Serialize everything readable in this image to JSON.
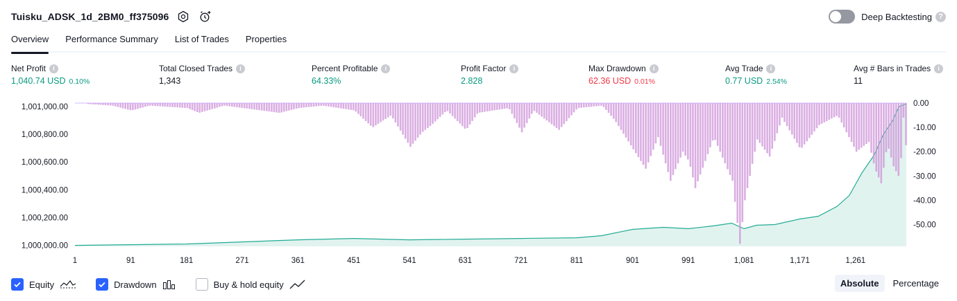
{
  "header": {
    "strategy_name": "Tuisku_ADSK_1d_2BM0_ff375096",
    "deep_backtesting_label": "Deep Backtesting",
    "deep_backtesting_enabled": false,
    "help_glyph": "?"
  },
  "tabs": [
    {
      "label": "Overview",
      "active": true
    },
    {
      "label": "Performance Summary",
      "active": false
    },
    {
      "label": "List of Trades",
      "active": false
    },
    {
      "label": "Properties",
      "active": false
    }
  ],
  "stats": {
    "info_glyph": "i",
    "net_profit": {
      "label": "Net Profit",
      "value": "1,040.74 USD",
      "pct": "0.10%"
    },
    "total_closed_trades": {
      "label": "Total Closed Trades",
      "value": "1,343"
    },
    "percent_profitable": {
      "label": "Percent Profitable",
      "value": "64.33%"
    },
    "profit_factor": {
      "label": "Profit Factor",
      "value": "2.828"
    },
    "max_drawdown": {
      "label": "Max Drawdown",
      "value": "62.36 USD",
      "pct": "0.01%"
    },
    "avg_trade": {
      "label": "Avg Trade",
      "value": "0.77 USD",
      "pct": "2.54%"
    },
    "avg_bars": {
      "label": "Avg # Bars in Trades",
      "value": "11"
    }
  },
  "colors": {
    "profit": "#089981",
    "loss": "#f23645",
    "equity_line": "#22ab94",
    "equity_fill": "#e1f3ef",
    "drawdown_fill": "#ce93d8",
    "drawdown_stroke": "#b388ff",
    "accent": "#2962ff"
  },
  "chart_data": {
    "type": "area",
    "x_ticks": [
      "1",
      "91",
      "181",
      "271",
      "361",
      "451",
      "541",
      "631",
      "721",
      "811",
      "901",
      "991",
      "1,081",
      "1,171",
      "1,261"
    ],
    "x_tick_values": [
      1,
      91,
      181,
      271,
      361,
      451,
      541,
      631,
      721,
      811,
      901,
      991,
      1081,
      1171,
      1261
    ],
    "xlim": [
      1,
      1343
    ],
    "left_axis": {
      "ticks": [
        "1,001,000.00",
        "1,000,800.00",
        "1,000,600.00",
        "1,000,400.00",
        "1,000,200.00",
        "1,000,000.00"
      ],
      "tick_values": [
        1001000,
        1000800,
        1000600,
        1000400,
        1000200,
        1000000
      ],
      "ylim": [
        999993,
        1001030
      ]
    },
    "right_axis": {
      "ticks": [
        "0.00",
        "-10.00",
        "-20.00",
        "-30.00",
        "-40.00",
        "-50.00"
      ],
      "tick_values": [
        0,
        -10,
        -20,
        -30,
        -40,
        -50
      ],
      "ylim": [
        -59,
        0.3
      ]
    },
    "series": [
      {
        "name": "Equity",
        "axis": "left",
        "points": [
          [
            1,
            1000000
          ],
          [
            91,
            1000005
          ],
          [
            181,
            1000010
          ],
          [
            271,
            1000025
          ],
          [
            361,
            1000040
          ],
          [
            451,
            1000050
          ],
          [
            541,
            1000040
          ],
          [
            631,
            1000045
          ],
          [
            721,
            1000050
          ],
          [
            811,
            1000055
          ],
          [
            851,
            1000070
          ],
          [
            901,
            1000115
          ],
          [
            951,
            1000130
          ],
          [
            991,
            1000120
          ],
          [
            1031,
            1000140
          ],
          [
            1061,
            1000160
          ],
          [
            1081,
            1000120
          ],
          [
            1101,
            1000145
          ],
          [
            1131,
            1000150
          ],
          [
            1171,
            1000190
          ],
          [
            1201,
            1000210
          ],
          [
            1231,
            1000280
          ],
          [
            1251,
            1000360
          ],
          [
            1271,
            1000520
          ],
          [
            1291,
            1000650
          ],
          [
            1306,
            1000800
          ],
          [
            1321,
            1000900
          ],
          [
            1331,
            1001000
          ],
          [
            1343,
            1001020
          ]
        ]
      },
      {
        "name": "Drawdown",
        "axis": "right",
        "points": [
          [
            1,
            0
          ],
          [
            60,
            -1
          ],
          [
            91,
            -3
          ],
          [
            120,
            -1
          ],
          [
            181,
            -2
          ],
          [
            200,
            -4
          ],
          [
            240,
            -1
          ],
          [
            271,
            -2
          ],
          [
            330,
            -4
          ],
          [
            361,
            -2
          ],
          [
            400,
            -1
          ],
          [
            451,
            -3
          ],
          [
            480,
            -10
          ],
          [
            510,
            -5
          ],
          [
            541,
            -18
          ],
          [
            560,
            -12
          ],
          [
            575,
            -9
          ],
          [
            600,
            -3
          ],
          [
            631,
            -11
          ],
          [
            650,
            -4
          ],
          [
            700,
            -2
          ],
          [
            721,
            -12
          ],
          [
            740,
            -3
          ],
          [
            781,
            -11
          ],
          [
            811,
            -2
          ],
          [
            851,
            -1
          ],
          [
            871,
            -7
          ],
          [
            901,
            -19
          ],
          [
            921,
            -27
          ],
          [
            941,
            -14
          ],
          [
            961,
            -32
          ],
          [
            981,
            -20
          ],
          [
            991,
            -24
          ],
          [
            1001,
            -35
          ],
          [
            1031,
            -14
          ],
          [
            1061,
            -32
          ],
          [
            1073,
            -58
          ],
          [
            1081,
            -40
          ],
          [
            1101,
            -15
          ],
          [
            1121,
            -22
          ],
          [
            1141,
            -6
          ],
          [
            1171,
            -19
          ],
          [
            1201,
            -9
          ],
          [
            1231,
            -5
          ],
          [
            1261,
            -20
          ],
          [
            1281,
            -16
          ],
          [
            1291,
            -27
          ],
          [
            1301,
            -33
          ],
          [
            1311,
            -17
          ],
          [
            1321,
            -26
          ],
          [
            1331,
            -31
          ],
          [
            1337,
            -6
          ],
          [
            1343,
            -23
          ]
        ]
      },
      {
        "name": "Buy & hold equity",
        "axis": "left",
        "enabled": false,
        "points": []
      }
    ]
  },
  "legend": {
    "items": [
      {
        "label": "Equity",
        "checked": true,
        "icon": "equity-wave-icon"
      },
      {
        "label": "Drawdown",
        "checked": true,
        "icon": "drawdown-bars-icon"
      },
      {
        "label": "Buy & hold equity",
        "checked": false,
        "icon": "buy-hold-line-icon"
      }
    ]
  },
  "mode": {
    "options": [
      "Absolute",
      "Percentage"
    ],
    "active": "Absolute"
  }
}
